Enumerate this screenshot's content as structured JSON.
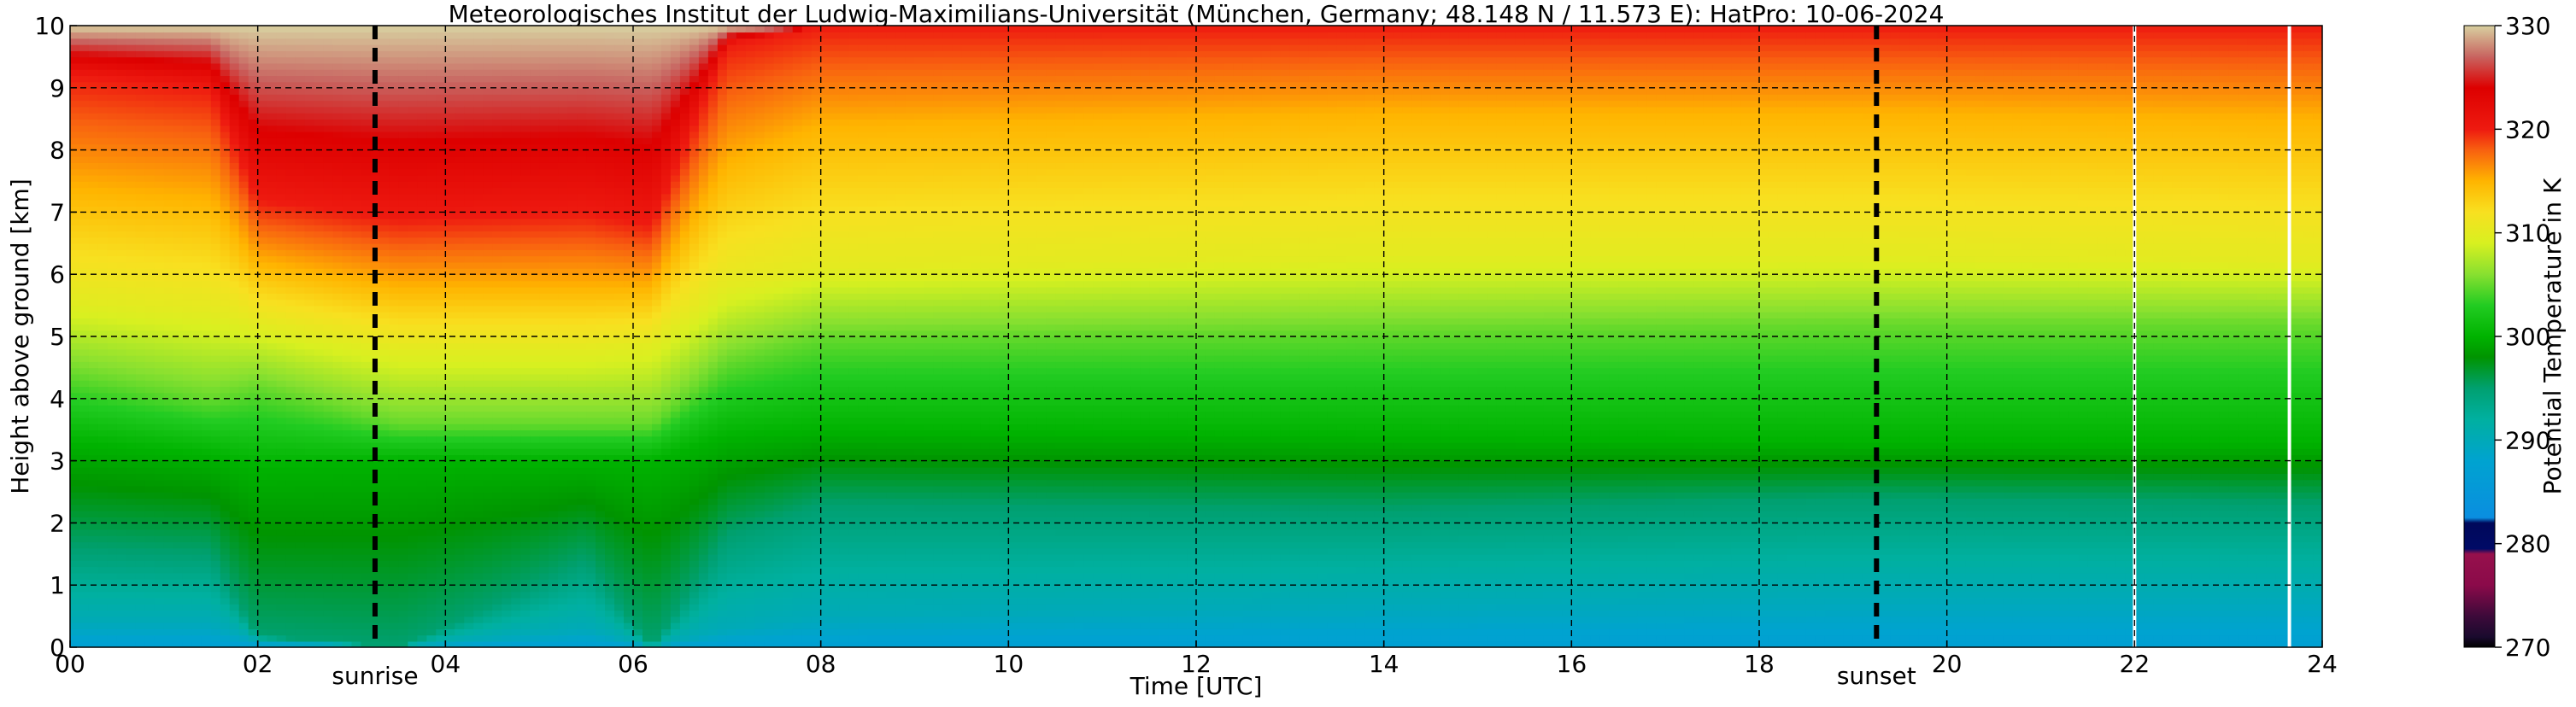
{
  "chart_data": {
    "type": "heatmap",
    "title": "Meteorologisches Institut der Ludwig-Maximilians-Universität (München, Germany; 48.148 N / 11.573 E):    HatPro: 10-06-2024",
    "xlabel": "Time [UTC]",
    "ylabel": "Height above ground [km]",
    "xlim": [
      0,
      24
    ],
    "ylim": [
      0,
      10
    ],
    "x_ticks": [
      0,
      2,
      4,
      6,
      8,
      10,
      12,
      14,
      16,
      18,
      20,
      22,
      24
    ],
    "x_tick_labels": [
      "00",
      "02",
      "04",
      "06",
      "08",
      "10",
      "12",
      "14",
      "16",
      "18",
      "20",
      "22",
      "24"
    ],
    "y_ticks": [
      0,
      1,
      2,
      3,
      4,
      5,
      6,
      7,
      8,
      9,
      10
    ],
    "y_tick_labels": [
      "0",
      "1",
      "2",
      "3",
      "4",
      "5",
      "6",
      "7",
      "8",
      "9",
      "10"
    ],
    "grid": true,
    "colorbar": {
      "label": "Potential Temperature in K",
      "range": [
        270,
        330
      ],
      "ticks": [
        270,
        280,
        290,
        300,
        310,
        320,
        330
      ],
      "tick_labels": [
        "270",
        "280",
        "290",
        "300",
        "310",
        "320",
        "330"
      ],
      "stops": [
        {
          "value": 270,
          "color": "#000000"
        },
        {
          "value": 271,
          "color": "#1a0a2e"
        },
        {
          "value": 273,
          "color": "#3d0a3a"
        },
        {
          "value": 276,
          "color": "#8b0a4a"
        },
        {
          "value": 279,
          "color": "#96104c"
        },
        {
          "value": 279.5,
          "color": "#000a66"
        },
        {
          "value": 282,
          "color": "#00085a"
        },
        {
          "value": 282.5,
          "color": "#0a8ee0"
        },
        {
          "value": 288,
          "color": "#00a3d0"
        },
        {
          "value": 292,
          "color": "#00b0a0"
        },
        {
          "value": 295,
          "color": "#00a070"
        },
        {
          "value": 298,
          "color": "#009400"
        },
        {
          "value": 300,
          "color": "#00b300"
        },
        {
          "value": 303,
          "color": "#22cc22"
        },
        {
          "value": 306,
          "color": "#88e030"
        },
        {
          "value": 309,
          "color": "#d8f020"
        },
        {
          "value": 312,
          "color": "#f8e020"
        },
        {
          "value": 315,
          "color": "#ffb400"
        },
        {
          "value": 318,
          "color": "#f86010"
        },
        {
          "value": 320,
          "color": "#ee1a10"
        },
        {
          "value": 324,
          "color": "#dd0000"
        },
        {
          "value": 327,
          "color": "#c86460"
        },
        {
          "value": 330,
          "color": "#d8d0a0"
        }
      ]
    },
    "vertical_markers": [
      {
        "x": 3.25,
        "label": "sunrise",
        "style": "dashed",
        "color": "#000000"
      },
      {
        "x": 19.25,
        "label": "sunset",
        "style": "dashed",
        "color": "#000000"
      }
    ],
    "missing_data_times": [
      22.0,
      23.65
    ],
    "field_description_profiles": [
      {
        "x": 0,
        "isentropes_km": {
          "290": 0.4,
          "295": 1.6,
          "300": 3.3,
          "305": 4.4,
          "310": 5.6,
          "315": 7.4,
          "320": 9.2
        }
      },
      {
        "x": 1.5,
        "isentropes_km": {
          "290": 0.4,
          "295": 1.5,
          "300": 3.1,
          "305": 4.0,
          "310": 5.4,
          "315": 7.2,
          "320": 9.0
        }
      },
      {
        "x": 2.0,
        "isentropes_km": {
          "290": 0.1,
          "295": 0.2,
          "300": 2.9,
          "305": 4.2,
          "310": 5.2,
          "315": 6.2,
          "320": 7.2
        }
      },
      {
        "x": 3.5,
        "isentropes_km": {
          "290": 0.0,
          "295": 0.0,
          "300": 3.0,
          "305": 3.6,
          "310": 4.8,
          "315": 5.8,
          "320": 6.9
        }
      },
      {
        "x": 5.5,
        "isentropes_km": {
          "290": 0.3,
          "295": 1.4,
          "300": 3.0,
          "305": 3.6,
          "310": 4.8,
          "315": 5.8,
          "320": 7.0
        }
      },
      {
        "x": 6.2,
        "isentropes_km": {
          "290": 0.0,
          "295": 0.0,
          "300": 3.0,
          "305": 3.6,
          "310": 4.9,
          "315": 5.8,
          "320": 6.8
        }
      },
      {
        "x": 7.0,
        "isentropes_km": {
          "290": 0.3,
          "295": 1.8,
          "300": 3.4,
          "305": 4.6,
          "310": 5.8,
          "315": 7.8,
          "320": 9.7
        }
      },
      {
        "x": 8.0,
        "isentropes_km": {
          "290": 0.5,
          "295": 2.3,
          "300": 3.5,
          "305": 5.0,
          "310": 6.1,
          "315": 8.4,
          "320": 10.0
        }
      },
      {
        "x": 14.0,
        "isentropes_km": {
          "290": 0.7,
          "295": 2.2,
          "300": 3.4,
          "305": 5.1,
          "310": 6.3,
          "315": 8.6,
          "320": 10.0
        }
      },
      {
        "x": 19.0,
        "isentropes_km": {
          "290": 0.8,
          "295": 2.4,
          "300": 3.3,
          "305": 5.2,
          "310": 6.3,
          "315": 8.6,
          "320": 10.0
        }
      },
      {
        "x": 24.0,
        "isentropes_km": {
          "290": 0.8,
          "295": 2.3,
          "300": 3.3,
          "305": 5.2,
          "310": 6.2,
          "315": 8.5,
          "320": 10.0
        }
      }
    ]
  }
}
